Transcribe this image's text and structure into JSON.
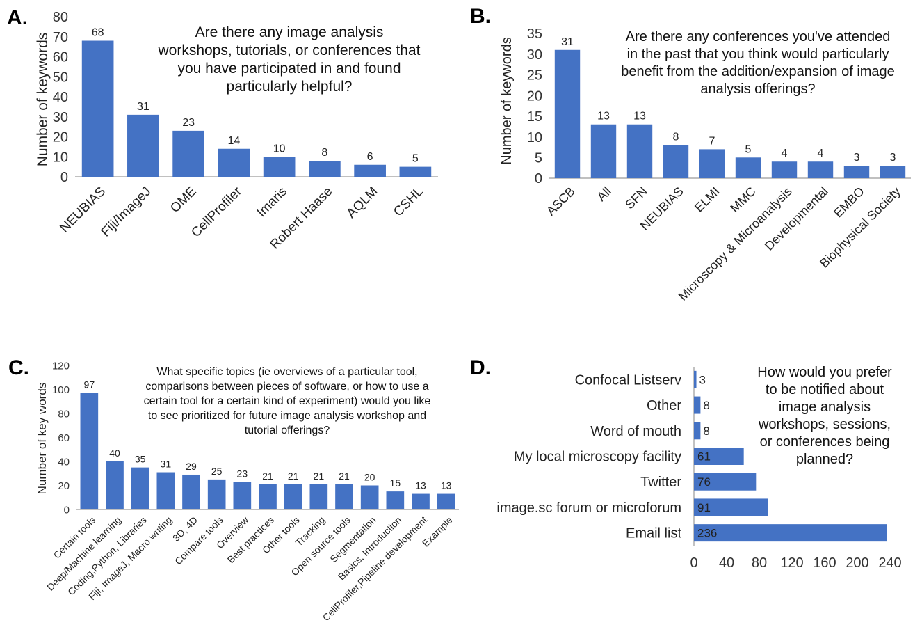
{
  "figure": {
    "bar_color": "#4472C4",
    "inside_label_color": "#F2D16B",
    "axis_color": "#9A9A9A"
  },
  "chart_data": [
    {
      "panel": "A.",
      "type": "bar",
      "ylabel": "Number of keywords",
      "xlabel": "",
      "ylim": [
        0,
        80
      ],
      "yticks": [
        0,
        10,
        20,
        30,
        40,
        50,
        60,
        70,
        80
      ],
      "grid": false,
      "question": [
        "Are there any image analysis",
        "workshops, tutorials, or conferences that",
        "you have participated in and found",
        "particularly helpful?"
      ],
      "categories": [
        "NEUBIAS",
        "Fiji/ImageJ",
        "OME",
        "CellProfiler",
        "Imaris",
        "Robert Haase",
        "AQLM",
        "CSHL"
      ],
      "values": [
        68,
        31,
        23,
        14,
        10,
        8,
        6,
        5
      ]
    },
    {
      "panel": "B.",
      "type": "bar",
      "ylabel": "Number of keywords",
      "xlabel": "",
      "ylim": [
        0,
        35
      ],
      "yticks": [
        0,
        5,
        10,
        15,
        20,
        25,
        30,
        35
      ],
      "grid": false,
      "question": [
        "Are there any conferences you've attended",
        "in the past that you think would particularly",
        "benefit from the addition/expansion of image",
        "analysis offerings?"
      ],
      "categories": [
        "ASCB",
        "All",
        "SFN",
        "NEUBIAS",
        "ELMI",
        "MMC",
        "Microscopy & Microanalysis",
        "Developmental",
        "EMBO",
        "Biophysical Society"
      ],
      "values": [
        31,
        13,
        13,
        8,
        7,
        5,
        4,
        4,
        3,
        3
      ]
    },
    {
      "panel": "C.",
      "type": "bar",
      "ylabel": "Number of key words",
      "xlabel": "",
      "ylim": [
        0,
        120
      ],
      "yticks": [
        0,
        20,
        40,
        60,
        80,
        100,
        120
      ],
      "grid": false,
      "question": [
        "What specific topics (ie overviews of a particular tool,",
        "comparisons between pieces of software, or how to use a",
        "certain tool for a certain kind of experiment) would you like",
        "to see prioritized for future image analysis workshop and",
        "tutorial offerings?"
      ],
      "categories": [
        "Certain tools",
        "Deep/Machine learning",
        "Coding,Python, Libraries",
        "Fiji, ImageJ, Macro writing",
        "3D, 4D",
        "Compare tools",
        "Overview",
        "Best practices",
        "Other tools",
        "Tracking",
        "Open source tools",
        "Segmentation",
        "Basics, Introduction",
        "CellProfiler,Pipeline development",
        "Example"
      ],
      "values": [
        97,
        40,
        35,
        31,
        29,
        25,
        23,
        21,
        21,
        21,
        21,
        20,
        15,
        13,
        13
      ]
    },
    {
      "panel": "D.",
      "type": "bar",
      "orientation": "horizontal",
      "xlabel": "",
      "ylabel": "",
      "xlim": [
        0,
        240
      ],
      "xticks": [
        0,
        40,
        80,
        120,
        160,
        200,
        240
      ],
      "grid": false,
      "question": [
        "How would you prefer",
        "to be notified about",
        "image analysis",
        "workshops, sessions,",
        "or conferences being",
        "planned?"
      ],
      "categories": [
        "Confocal Listserv",
        "Other",
        "Word of mouth",
        "My local microscopy facility",
        "Twitter",
        "image.sc forum or microforum",
        "Email list"
      ],
      "values": [
        3,
        8,
        8,
        61,
        76,
        91,
        236
      ]
    }
  ]
}
